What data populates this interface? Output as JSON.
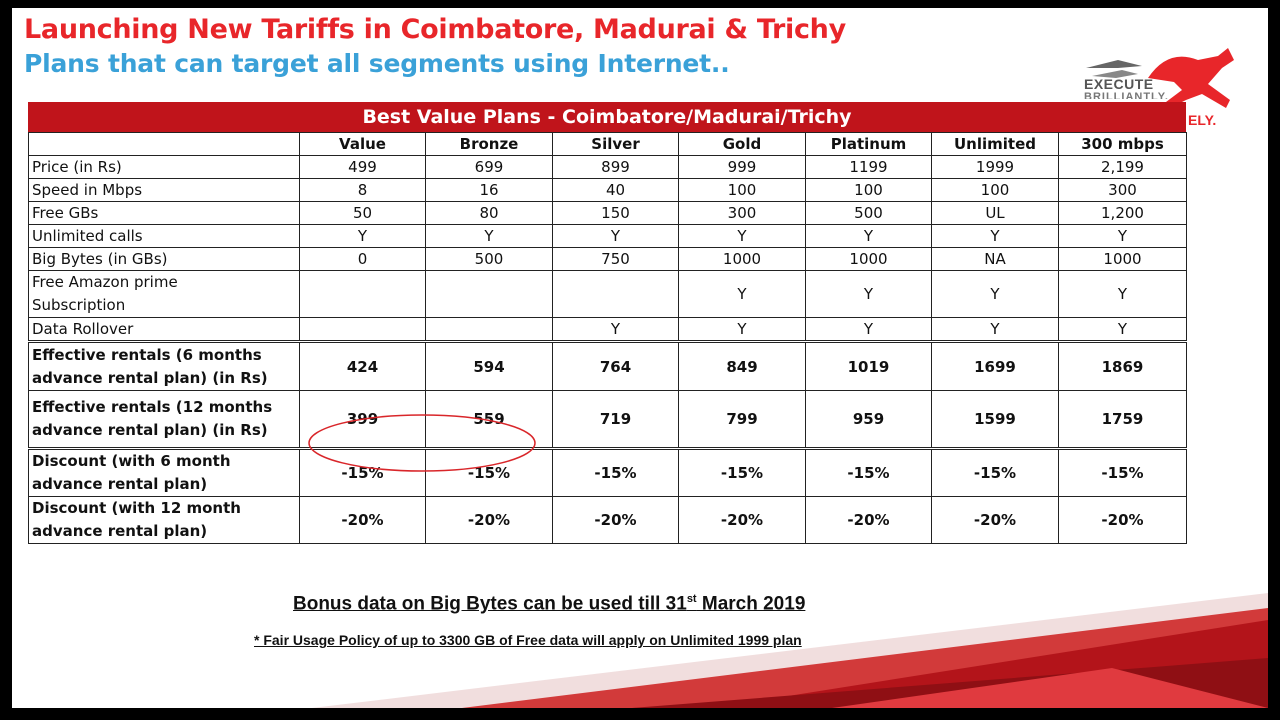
{
  "header": {
    "title": "Launching New Tariffs in Coimbatore, Madurai & Trichy",
    "subtitle": "Plans that can target all segments using Internet.."
  },
  "logo": {
    "line1": "EXECUTE",
    "line2": "BRILLIANTLY.",
    "tag": "ELY."
  },
  "table": {
    "title": "Best Value Plans - Coimbatore/Madurai/Trichy",
    "columns": [
      "",
      "Value",
      "Bronze",
      "Silver",
      "Gold",
      "Platinum",
      "Unlimited",
      "300 mbps"
    ],
    "rows": [
      {
        "label": "Price (in Rs)",
        "cells": [
          "499",
          "699",
          "899",
          "999",
          "1199",
          "1999",
          "2,199"
        ]
      },
      {
        "label": "Speed in Mbps",
        "cells": [
          "8",
          "16",
          "40",
          "100",
          "100",
          "100",
          "300"
        ]
      },
      {
        "label": "Free GBs",
        "cells": [
          "50",
          "80",
          "150",
          "300",
          "500",
          "UL",
          "1,200"
        ]
      },
      {
        "label": "Unlimited calls",
        "cells": [
          "Y",
          "Y",
          "Y",
          "Y",
          "Y",
          "Y",
          "Y"
        ]
      },
      {
        "label": "Big Bytes (in GBs)",
        "cells": [
          "0",
          "500",
          "750",
          "1000",
          "1000",
          "NA",
          "1000"
        ]
      },
      {
        "label_line1": "Free Amazon prime",
        "label_line2": "Subscription",
        "cells": [
          "",
          "",
          "",
          "Y",
          "Y",
          "Y",
          "Y"
        ]
      },
      {
        "label": "Data Rollover",
        "cells": [
          "",
          "",
          "Y",
          "Y",
          "Y",
          "Y",
          "Y"
        ]
      },
      {
        "label_line1": "Effective rentals (6 months",
        "label_line2": "advance rental plan) (in Rs)",
        "cells": [
          "424",
          "594",
          "764",
          "849",
          "1019",
          "1699",
          "1869"
        ]
      },
      {
        "label_line1": "Effective rentals (12 months",
        "label_line2": "advance rental plan) (in Rs)",
        "cells": [
          "399",
          "559",
          "719",
          "799",
          "959",
          "1599",
          "1759"
        ]
      },
      {
        "label_line1": "Discount (with 6 month",
        "label_line2": "advance rental plan)",
        "cells": [
          "-15%",
          "-15%",
          "-15%",
          "-15%",
          "-15%",
          "-15%",
          "-15%"
        ]
      },
      {
        "label_line1": "Discount (with 12 month",
        "label_line2": "advance rental plan)",
        "cells": [
          "-20%",
          "-20%",
          "-20%",
          "-20%",
          "-20%",
          "-20%",
          "-20%"
        ]
      }
    ]
  },
  "notes": {
    "bonus_main": "Bonus data on Big Bytes can be used till 31",
    "bonus_sup": "st",
    "bonus_end": " March 2019",
    "fup": "* Fair Usage Policy of up to 3300 GB of Free data will apply on Unlimited 1999 plan"
  },
  "colors": {
    "title_red": "#e8262a",
    "subtitle_blue": "#3aa1d8",
    "table_header_red": "#c0141b",
    "highlight_circle": "#d9262a"
  }
}
